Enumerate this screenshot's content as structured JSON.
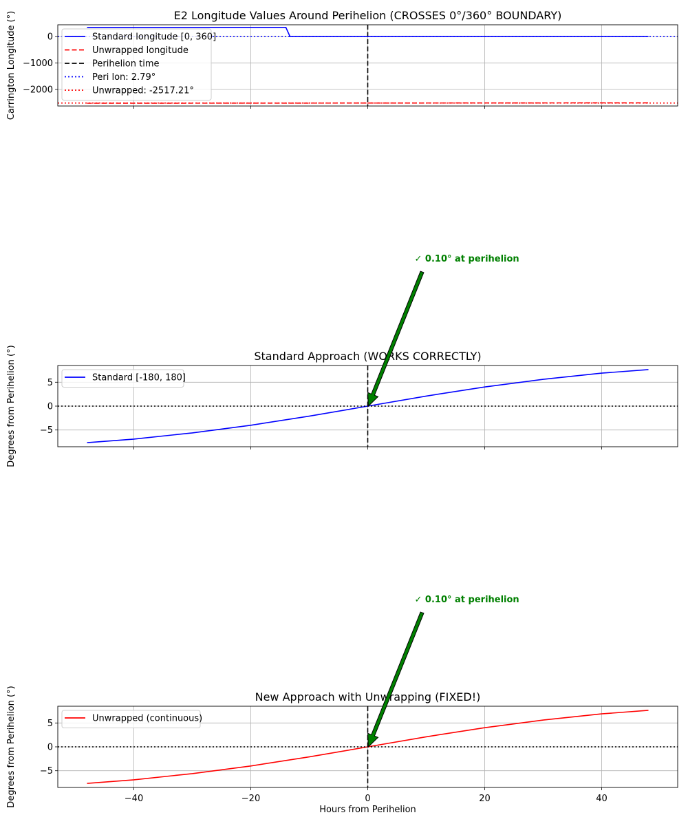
{
  "chart_data": [
    {
      "type": "line",
      "title": "E2 Longitude Values Around Perihelion (CROSSES 0°/360° BOUNDARY)",
      "xlabel": "",
      "ylabel": "Carrington Longitude (°)",
      "xlim": [
        -53,
        53
      ],
      "ylim": [
        -2630,
        450
      ],
      "yticks": [
        0,
        -1000,
        -2000
      ],
      "ytick_labels": [
        "0",
        "−1000",
        "−2000"
      ],
      "grid": true,
      "legend_position": "top-left",
      "series": [
        {
          "name": "Standard longitude [0, 360]",
          "color": "#0000ff",
          "style": "solid",
          "x": [
            -48,
            -14,
            -13.3,
            48
          ],
          "y": [
            352,
            352,
            3,
            3
          ]
        },
        {
          "name": "Unwrapped longitude",
          "color": "#ff0000",
          "style": "dashed",
          "x": [
            -48,
            48
          ],
          "y": [
            -2525,
            -2509
          ]
        },
        {
          "name": "Perihelion time",
          "color": "#000000",
          "style": "dashed",
          "vline": 0
        },
        {
          "name": "Peri lon: 2.79°",
          "color": "#0000ff",
          "style": "dotted",
          "hline": 2.79
        },
        {
          "name": "Unwrapped: -2517.21°",
          "color": "#ff0000",
          "style": "dotted",
          "hline": -2517.21
        }
      ]
    },
    {
      "type": "line",
      "title": "Standard Approach (WORKS CORRECTLY)",
      "xlabel": "",
      "ylabel": "Degrees from Perihelion (°)",
      "xlim": [
        -53,
        53
      ],
      "ylim": [
        -8.5,
        8.5
      ],
      "yticks": [
        5,
        0,
        -5
      ],
      "ytick_labels": [
        "5",
        "0",
        "−5"
      ],
      "grid": true,
      "legend_position": "top-left",
      "series": [
        {
          "name": "Standard [-180, 180]",
          "color": "#0000ff",
          "style": "solid",
          "x": [
            -48,
            -40,
            -30,
            -20,
            -10,
            0,
            10,
            20,
            30,
            40,
            48
          ],
          "y": [
            -7.65,
            -6.9,
            -5.6,
            -4.0,
            -2.1,
            0.0,
            2.1,
            4.0,
            5.6,
            6.9,
            7.65
          ]
        },
        {
          "name": "Perihelion time",
          "color": "#000000",
          "style": "dashed",
          "vline": 0
        },
        {
          "name": "zero",
          "color": "#000000",
          "style": "dotted",
          "hline": 0
        }
      ],
      "annotation": {
        "text": "✓ 0.10° at perihelion",
        "x": 0.1,
        "y": 0
      }
    },
    {
      "type": "line",
      "title": "New Approach with Unwrapping (FIXED!)",
      "xlabel": "Hours from Perihelion",
      "ylabel": "Degrees from Perihelion (°)",
      "xlim": [
        -53,
        53
      ],
      "ylim": [
        -8.5,
        8.5
      ],
      "xticks": [
        -40,
        -20,
        0,
        20,
        40
      ],
      "xtick_labels": [
        "−40",
        "−20",
        "0",
        "20",
        "40"
      ],
      "yticks": [
        5,
        0,
        -5
      ],
      "ytick_labels": [
        "5",
        "0",
        "−5"
      ],
      "grid": true,
      "legend_position": "top-left",
      "series": [
        {
          "name": "Unwrapped (continuous)",
          "color": "#ff0000",
          "style": "solid",
          "x": [
            -48,
            -40,
            -30,
            -20,
            -10,
            0,
            10,
            20,
            30,
            40,
            48
          ],
          "y": [
            -7.65,
            -6.9,
            -5.6,
            -4.0,
            -2.1,
            0.0,
            2.1,
            4.0,
            5.6,
            6.9,
            7.65
          ]
        },
        {
          "name": "Perihelion time",
          "color": "#000000",
          "style": "dashed",
          "vline": 0
        },
        {
          "name": "zero",
          "color": "#000000",
          "style": "dotted",
          "hline": 0
        }
      ],
      "annotation": {
        "text": "✓ 0.10° at perihelion",
        "x": 0.1,
        "y": 0
      }
    }
  ]
}
